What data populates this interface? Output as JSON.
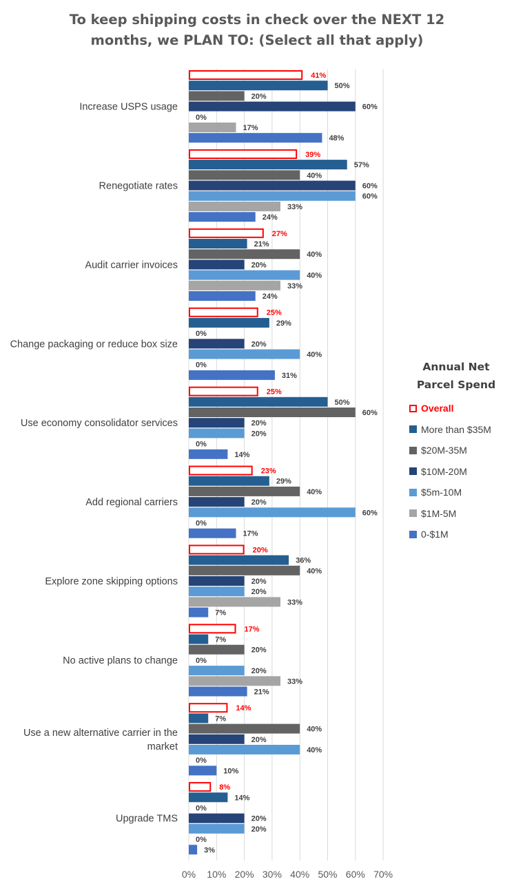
{
  "chart_data": {
    "type": "bar",
    "orientation": "horizontal",
    "title": [
      "To keep shipping costs in check over the NEXT 12",
      "months, we PLAN TO: (Select all that apply)"
    ],
    "legend_title": [
      "Annual Net",
      "Parcel Spend"
    ],
    "legend_position": "right",
    "grid": true,
    "xlim": [
      0,
      70
    ],
    "x_ticks": [
      "0%",
      "10%",
      "20%",
      "30%",
      "40%",
      "50%",
      "60%",
      "70%"
    ],
    "categories": [
      [
        "Increase USPS usage"
      ],
      [
        "Renegotiate rates"
      ],
      [
        "Audit carrier invoices"
      ],
      [
        "Change packaging or reduce box size"
      ],
      [
        "Use economy consolidator services"
      ],
      [
        "Add regional carriers"
      ],
      [
        "Explore zone skipping options"
      ],
      [
        "No active plans to change"
      ],
      [
        "Use a new alternative carrier in the",
        "market"
      ],
      [
        "Upgrade TMS"
      ]
    ],
    "series": [
      {
        "name": "Overall",
        "color": "#ff0000",
        "style": "outline",
        "values": [
          41,
          39,
          27,
          25,
          25,
          23,
          20,
          17,
          14,
          8
        ]
      },
      {
        "name": "More than $35M",
        "color": "#255e91",
        "values": [
          50,
          57,
          21,
          29,
          50,
          29,
          36,
          7,
          7,
          14
        ]
      },
      {
        "name": "$20M-35M",
        "color": "#636363",
        "values": [
          20,
          40,
          40,
          0,
          60,
          40,
          40,
          20,
          40,
          0
        ]
      },
      {
        "name": "$10M-20M",
        "color": "#264478",
        "values": [
          60,
          60,
          20,
          20,
          20,
          20,
          20,
          0,
          20,
          20
        ]
      },
      {
        "name": "$5m-10M",
        "color": "#5b9bd5",
        "values": [
          0,
          60,
          40,
          40,
          20,
          60,
          20,
          20,
          40,
          20
        ]
      },
      {
        "name": "$1M-5M",
        "color": "#a5a5a5",
        "values": [
          17,
          33,
          33,
          0,
          0,
          0,
          33,
          33,
          0,
          0
        ]
      },
      {
        "name": "0-$1M",
        "color": "#4472c4",
        "values": [
          48,
          24,
          24,
          31,
          14,
          17,
          7,
          21,
          10,
          3
        ]
      }
    ]
  }
}
